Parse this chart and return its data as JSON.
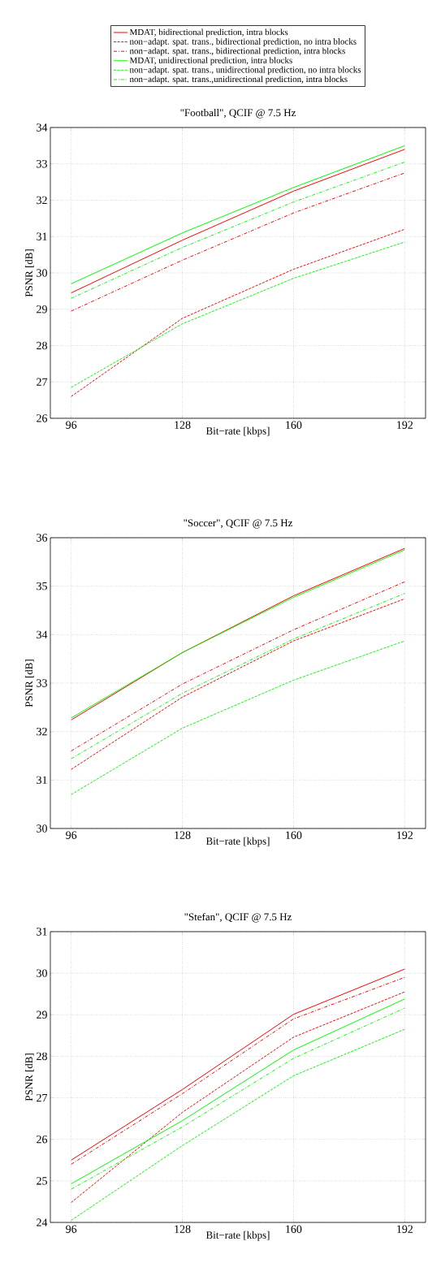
{
  "chart_data": [
    {
      "type": "line",
      "title": "\"Football\", QCIF @ 7.5 Hz",
      "xlabel": "Bit−rate [kbps]",
      "ylabel": "PSNR [dB]",
      "x": [
        96,
        128,
        160,
        192
      ],
      "xlim": [
        90,
        198
      ],
      "xticks": [
        96,
        128,
        160,
        192
      ],
      "ylim": [
        26,
        34
      ],
      "yticks": [
        26,
        27,
        28,
        29,
        30,
        31,
        32,
        33,
        34
      ],
      "grid": true,
      "legend": "top",
      "series": [
        {
          "name": "MDAT, bidirectional prediction, intra blocks",
          "color": "#ff0000",
          "line_style": "solid",
          "values": [
            29.45,
            30.9,
            32.25,
            33.4
          ]
        },
        {
          "name": "non−adapt. spat. trans., bidirectional prediction, no intra blocks",
          "color": "#ff0000",
          "line_style": "dashed",
          "values": [
            26.6,
            28.75,
            30.1,
            31.2
          ]
        },
        {
          "name": "non−adapt. spat. trans., bidirectional prediction, intra blocks",
          "color": "#ff0000",
          "line_style": "dashdot",
          "values": [
            28.95,
            30.35,
            31.65,
            32.75
          ]
        },
        {
          "name": "MDAT, unidirectional prediction, intra blocks",
          "color": "#00ff00",
          "line_style": "solid",
          "values": [
            29.7,
            31.1,
            32.35,
            33.5
          ]
        },
        {
          "name": "non−adapt. spat. trans., unidirectional prediction, no intra blocks",
          "color": "#00ff00",
          "line_style": "dashed",
          "values": [
            26.85,
            28.6,
            29.85,
            30.85
          ]
        },
        {
          "name": "non−adapt. spat. trans.,unidirectional prediction, intra blocks",
          "color": "#00ff00",
          "line_style": "dashdot",
          "values": [
            29.3,
            30.7,
            31.95,
            33.05
          ]
        }
      ]
    },
    {
      "type": "line",
      "title": "\"Soccer\", QCIF @ 7.5 Hz",
      "xlabel": "Bit−rate [kbps]",
      "ylabel": "PSNR [dB]",
      "x": [
        96,
        128,
        160,
        192
      ],
      "xlim": [
        90,
        198
      ],
      "xticks": [
        96,
        128,
        160,
        192
      ],
      "ylim": [
        30,
        36
      ],
      "yticks": [
        30,
        31,
        32,
        33,
        34,
        35,
        36
      ],
      "grid": true,
      "series": [
        {
          "color": "#ff0000",
          "line_style": "solid",
          "values": [
            32.24,
            33.63,
            34.8,
            35.78
          ]
        },
        {
          "color": "#ff0000",
          "line_style": "dashed",
          "values": [
            31.22,
            32.71,
            33.87,
            34.74
          ]
        },
        {
          "color": "#ff0000",
          "line_style": "dashdot",
          "values": [
            31.6,
            32.98,
            34.1,
            35.09
          ]
        },
        {
          "color": "#00ff00",
          "line_style": "solid",
          "values": [
            32.28,
            33.63,
            34.77,
            35.75
          ]
        },
        {
          "color": "#00ff00",
          "line_style": "dashed",
          "values": [
            30.7,
            32.07,
            33.06,
            33.87
          ]
        },
        {
          "color": "#00ff00",
          "line_style": "dashdot",
          "values": [
            31.44,
            32.79,
            33.91,
            34.85
          ]
        }
      ]
    },
    {
      "type": "line",
      "title": "\"Stefan\", QCIF @ 7.5 Hz",
      "xlabel": "Bit−rate [kbps]",
      "ylabel": "PSNR [dB]",
      "x": [
        96,
        128,
        160,
        192
      ],
      "xlim": [
        90,
        198
      ],
      "xticks": [
        96,
        128,
        160,
        192
      ],
      "ylim": [
        24,
        31
      ],
      "yticks": [
        24,
        25,
        26,
        27,
        28,
        29,
        30,
        31
      ],
      "grid": true,
      "series": [
        {
          "color": "#ff0000",
          "line_style": "solid",
          "values": [
            25.5,
            27.2,
            29.01,
            30.1
          ]
        },
        {
          "color": "#ff0000",
          "line_style": "dashed",
          "values": [
            24.48,
            26.65,
            28.46,
            29.55
          ]
        },
        {
          "color": "#ff0000",
          "line_style": "dashdot",
          "values": [
            25.4,
            27.1,
            28.9,
            29.9
          ]
        },
        {
          "color": "#00ff00",
          "line_style": "solid",
          "values": [
            24.93,
            26.45,
            28.15,
            29.38
          ]
        },
        {
          "color": "#00ff00",
          "line_style": "dashed",
          "values": [
            24.05,
            25.85,
            27.53,
            28.65
          ]
        },
        {
          "color": "#00ff00",
          "line_style": "dashdot",
          "values": [
            24.8,
            26.3,
            27.95,
            29.16
          ]
        }
      ]
    }
  ]
}
